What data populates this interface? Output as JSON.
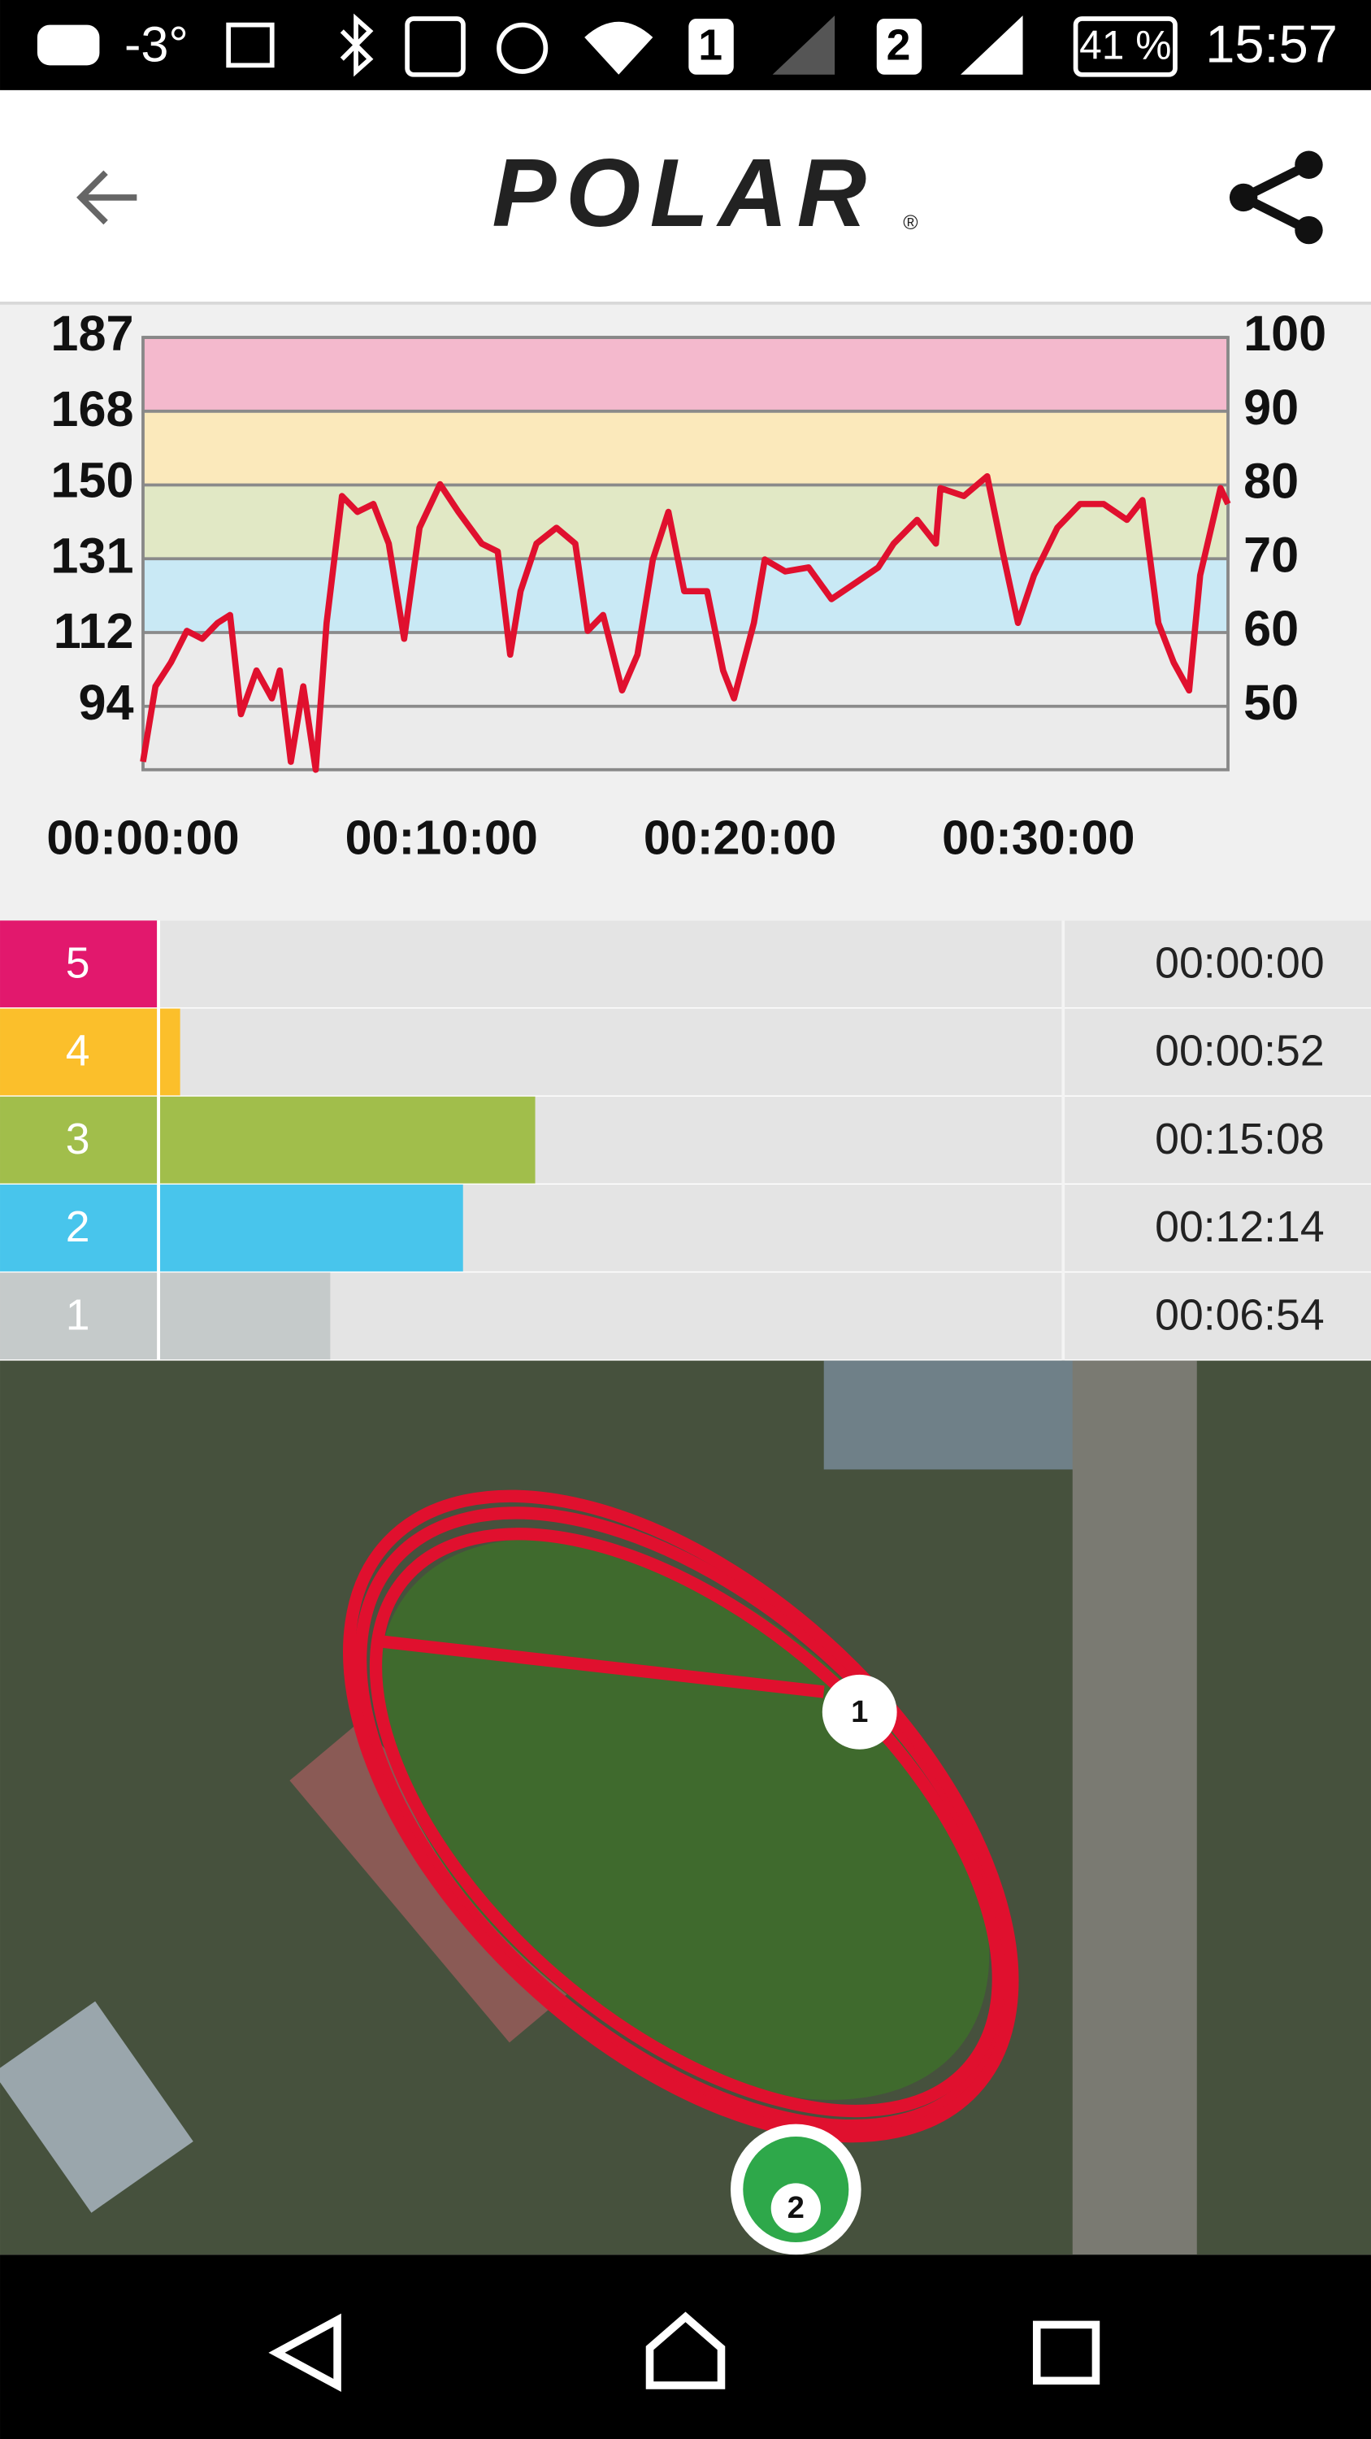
{
  "status": {
    "temperature": "-3°",
    "sim1": "1",
    "sim2": "2",
    "battery": "41 %",
    "time": "15:57"
  },
  "header": {
    "logo": "POLAR",
    "registered": "®"
  },
  "chart_data": {
    "type": "line",
    "x": [
      0,
      25,
      56,
      88,
      119,
      150,
      175,
      197,
      228,
      259,
      275,
      297,
      322,
      347,
      369,
      400,
      431,
      463,
      494,
      525,
      556,
      597,
      634,
      681,
      713,
      738,
      759,
      791,
      831,
      869,
      894,
      925,
      963,
      994,
      1025,
      1056,
      1088,
      1134,
      1166,
      1188,
      1228,
      1250,
      1291,
      1338,
      1384,
      1431,
      1478,
      1509,
      1556,
      1594,
      1603,
      1650,
      1697,
      1728,
      1759,
      1791,
      1838,
      1884,
      1931,
      1978,
      2009,
      2041,
      2072,
      2103,
      2125,
      2166,
      2181
    ],
    "values": [
      80,
      99,
      105,
      113,
      111,
      115,
      117,
      92,
      103,
      96,
      103,
      80,
      99,
      78,
      115,
      147,
      143,
      145,
      135,
      111,
      139,
      150,
      143,
      135,
      133,
      107,
      123,
      135,
      139,
      135,
      113,
      117,
      98,
      107,
      131,
      143,
      123,
      123,
      103,
      96,
      115,
      131,
      128,
      129,
      121,
      125,
      129,
      135,
      141,
      135,
      149,
      147,
      152,
      133,
      115,
      127,
      139,
      145,
      145,
      141,
      146,
      115,
      105,
      98,
      127,
      149,
      145
    ],
    "color": "#e0102e",
    "xlim": [
      0,
      2181
    ],
    "xticks": [
      {
        "value": 0,
        "label": "00:00:00"
      },
      {
        "value": 600,
        "label": "00:10:00"
      },
      {
        "value": 1200,
        "label": "00:20:00"
      },
      {
        "value": 1800,
        "label": "00:30:00"
      }
    ],
    "ylim": [
      78,
      187
    ],
    "yticks": [
      187,
      168,
      150,
      131,
      112,
      94
    ],
    "y2lim": [
      41.4,
      100
    ],
    "y2ticks": [
      100,
      90,
      80,
      70,
      60,
      50
    ],
    "band_colors": [
      "#f4b9cd",
      "#fbe9bb",
      "#e1e8c5",
      "#c9e9f5",
      "#ebebeb"
    ],
    "grid": true
  },
  "zones": [
    {
      "zone": "5",
      "time": "00:00:00",
      "color": "#e2186d"
    },
    {
      "zone": "4",
      "time": "00:00:52",
      "color": "#fbbf2b"
    },
    {
      "zone": "3",
      "time": "00:15:08",
      "color": "#a1be4b"
    },
    {
      "zone": "2",
      "time": "00:12:14",
      "color": "#48c5ec"
    },
    {
      "zone": "1",
      "time": "00:06:54",
      "color": "#c5caca"
    }
  ],
  "map": {
    "markers": [
      "1",
      "2"
    ]
  }
}
